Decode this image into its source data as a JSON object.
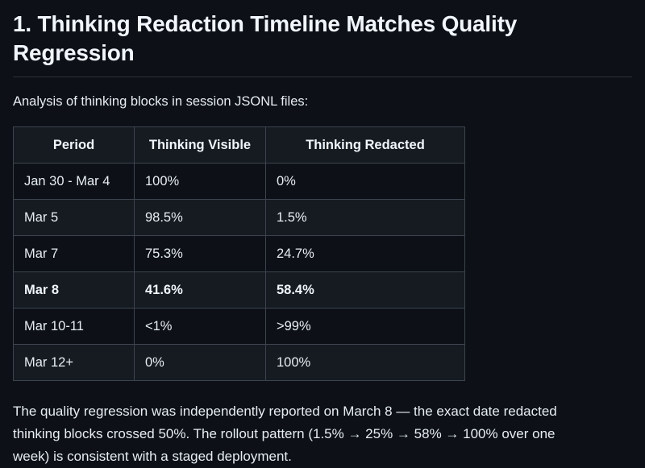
{
  "heading": "1. Thinking Redaction Timeline Matches Quality Regression",
  "intro": "Analysis of thinking blocks in session JSONL files:",
  "table": {
    "headers": [
      "Period",
      "Thinking Visible",
      "Thinking Redacted"
    ],
    "rows": [
      {
        "period": "Jan 30 - Mar 4",
        "visible": "100%",
        "redacted": "0%",
        "bold": false
      },
      {
        "period": "Mar 5",
        "visible": "98.5%",
        "redacted": "1.5%",
        "bold": false
      },
      {
        "period": "Mar 7",
        "visible": "75.3%",
        "redacted": "24.7%",
        "bold": false
      },
      {
        "period": "Mar 8",
        "visible": "41.6%",
        "redacted": "58.4%",
        "bold": true
      },
      {
        "period": "Mar 10-11",
        "visible": "<1%",
        "redacted": ">99%",
        "bold": false
      },
      {
        "period": "Mar 12+",
        "visible": "0%",
        "redacted": "100%",
        "bold": false
      }
    ]
  },
  "conclusion": "The quality regression was independently reported on March 8 — the exact date redacted thinking blocks crossed 50%. The rollout pattern (1.5% → 25% → 58% → 100% over one week) is consistent with a staged deployment.",
  "colors": {
    "background": "#0d1117",
    "text": "#e6edf3",
    "heading_text": "#f0f6fc",
    "table_border": "#3d444d",
    "row_alt_background": "#161b22",
    "heading_rule": "#2b313a"
  }
}
